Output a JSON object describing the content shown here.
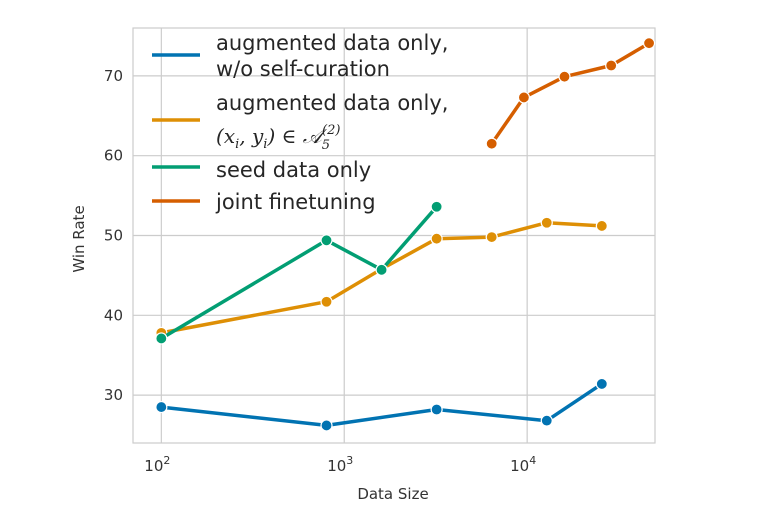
{
  "chart_data": {
    "type": "line",
    "xlabel": "Data Size",
    "ylabel": "Win Rate",
    "xscale": "log",
    "xlim": [
      70,
      50000
    ],
    "ylim": [
      24,
      76
    ],
    "grid": true,
    "legend_position": "top-left",
    "x_ticks": [
      {
        "value": 100,
        "base": "10",
        "exp": "2"
      },
      {
        "value": 1000,
        "base": "10",
        "exp": "3"
      },
      {
        "value": 10000,
        "base": "10",
        "exp": "4"
      }
    ],
    "y_ticks": [
      30,
      40,
      50,
      60,
      70
    ],
    "series": [
      {
        "name": "augmented data only, w/o self-curation",
        "legend_lines": [
          "augmented data only,",
          "w/o self-curation"
        ],
        "color": "#0173b2",
        "x": [
          100,
          800,
          3200,
          12800,
          25600
        ],
        "y": [
          28.5,
          26.2,
          28.2,
          26.8,
          31.4
        ]
      },
      {
        "name": "augmented data only, (xi, yi) ∈ A5(2)",
        "legend_lines": [
          "augmented data only,"
        ],
        "legend_math": {
          "open": "(",
          "x": "x",
          "i": "i",
          "comma": ", ",
          "y": "y",
          "close": ") ∈ ",
          "A": "𝒜",
          "sub": "5",
          "sup": "(2)"
        },
        "color": "#de8f05",
        "x": [
          100,
          800,
          1600,
          3200,
          6400,
          12800,
          25600
        ],
        "y": [
          37.8,
          41.7,
          45.8,
          49.6,
          49.8,
          51.6,
          51.2
        ]
      },
      {
        "name": "seed data only",
        "legend_lines": [
          "seed data only"
        ],
        "color": "#029e73",
        "x": [
          100,
          800,
          1600,
          3200
        ],
        "y": [
          37.1,
          49.4,
          45.7,
          53.6
        ]
      },
      {
        "name": "joint finetuning",
        "legend_lines": [
          "joint finetuning"
        ],
        "color": "#d55e00",
        "x": [
          6400,
          9600,
          16000,
          28800,
          46400
        ],
        "y": [
          61.5,
          67.3,
          69.9,
          71.3,
          74.1
        ]
      }
    ]
  }
}
